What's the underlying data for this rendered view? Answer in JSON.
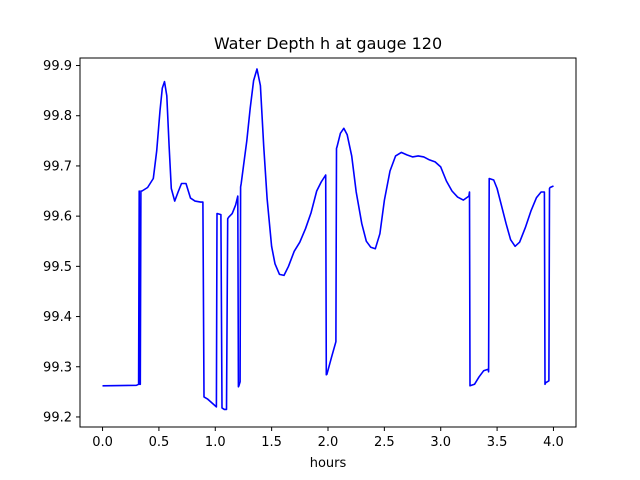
{
  "chart_data": {
    "type": "line",
    "title": "Water Depth h at gauge 120",
    "xlabel": "hours",
    "ylabel": "",
    "xlim": [
      -0.2,
      4.2
    ],
    "ylim": [
      99.18,
      99.915
    ],
    "x_ticks": [
      0.0,
      0.5,
      1.0,
      1.5,
      2.0,
      2.5,
      3.0,
      3.5,
      4.0
    ],
    "x_tick_labels": [
      "0.0",
      "0.5",
      "1.0",
      "1.5",
      "2.0",
      "2.5",
      "3.0",
      "3.5",
      "4.0"
    ],
    "y_ticks": [
      99.2,
      99.3,
      99.4,
      99.5,
      99.6,
      99.7,
      99.8,
      99.9
    ],
    "y_tick_labels": [
      "99.2",
      "99.3",
      "99.4",
      "99.5",
      "99.6",
      "99.7",
      "99.8",
      "99.9"
    ],
    "grid": false,
    "series": [
      {
        "color": "#0000ff",
        "x": [
          0.0,
          0.3,
          0.32,
          0.325,
          0.33,
          0.335,
          0.34,
          0.35,
          0.4,
          0.45,
          0.48,
          0.51,
          0.53,
          0.55,
          0.57,
          0.59,
          0.61,
          0.64,
          0.67,
          0.7,
          0.74,
          0.78,
          0.82,
          0.87,
          0.89,
          0.9,
          0.93,
          0.97,
          1.01,
          1.015,
          1.02,
          1.05,
          1.06,
          1.08,
          1.1,
          1.11,
          1.12,
          1.15,
          1.18,
          1.2,
          1.205,
          1.21,
          1.22,
          1.225,
          1.23,
          1.25,
          1.28,
          1.31,
          1.34,
          1.37,
          1.4,
          1.43,
          1.46,
          1.5,
          1.53,
          1.57,
          1.61,
          1.65,
          1.7,
          1.75,
          1.8,
          1.85,
          1.9,
          1.94,
          1.98,
          1.985,
          1.99,
          2.03,
          2.07,
          2.075,
          2.08,
          2.11,
          2.14,
          2.17,
          2.21,
          2.25,
          2.3,
          2.34,
          2.38,
          2.42,
          2.46,
          2.5,
          2.55,
          2.6,
          2.65,
          2.7,
          2.75,
          2.8,
          2.85,
          2.9,
          2.95,
          3.0,
          3.05,
          3.1,
          3.15,
          3.2,
          3.25,
          3.255,
          3.26,
          3.3,
          3.34,
          3.38,
          3.42,
          3.425,
          3.43,
          3.47,
          3.5,
          3.54,
          3.58,
          3.62,
          3.66,
          3.7,
          3.75,
          3.8,
          3.85,
          3.89,
          3.92,
          3.925,
          3.93,
          3.96,
          3.965,
          3.97,
          4.0
        ],
        "y": [
          99.262,
          99.263,
          99.265,
          99.65,
          99.265,
          99.265,
          99.65,
          99.65,
          99.657,
          99.675,
          99.73,
          99.81,
          99.855,
          99.868,
          99.84,
          99.74,
          99.655,
          99.63,
          99.648,
          99.665,
          99.665,
          99.636,
          99.63,
          99.628,
          99.628,
          99.24,
          99.236,
          99.228,
          99.22,
          99.605,
          99.605,
          99.603,
          99.218,
          99.215,
          99.215,
          99.595,
          99.598,
          99.605,
          99.622,
          99.64,
          99.26,
          99.262,
          99.27,
          99.658,
          99.665,
          99.7,
          99.75,
          99.815,
          99.87,
          99.893,
          99.86,
          99.74,
          99.635,
          99.54,
          99.505,
          99.484,
          99.482,
          99.5,
          99.53,
          99.548,
          99.575,
          99.607,
          99.65,
          99.668,
          99.682,
          99.284,
          99.285,
          99.318,
          99.35,
          99.735,
          99.738,
          99.765,
          99.775,
          99.762,
          99.72,
          99.648,
          99.585,
          99.55,
          99.538,
          99.535,
          99.565,
          99.632,
          99.69,
          99.72,
          99.727,
          99.722,
          99.718,
          99.72,
          99.718,
          99.712,
          99.708,
          99.698,
          99.67,
          99.65,
          99.638,
          99.632,
          99.64,
          99.648,
          99.262,
          99.265,
          99.28,
          99.292,
          99.295,
          99.29,
          99.675,
          99.672,
          99.655,
          99.62,
          99.585,
          99.553,
          99.54,
          99.548,
          99.577,
          99.61,
          99.637,
          99.648,
          99.648,
          99.265,
          99.268,
          99.272,
          99.655,
          99.657,
          99.66
        ]
      }
    ]
  }
}
